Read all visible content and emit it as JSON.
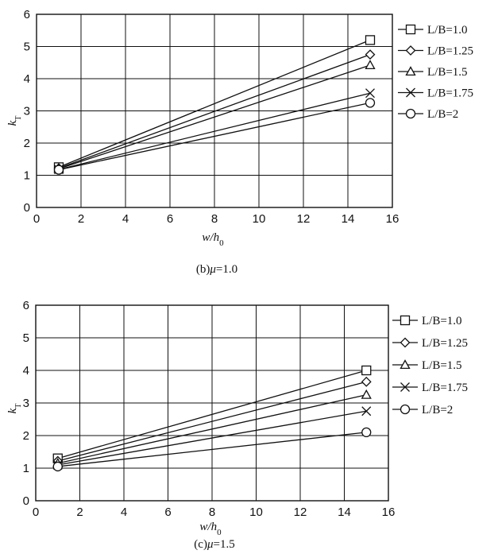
{
  "chart_data": [
    {
      "type": "line",
      "caption_prefix": "(b)",
      "caption_var": "μ",
      "caption_value": "=1.0",
      "xlabel_main": "w/h",
      "xlabel_sub": "0",
      "ylabel_main": "k",
      "ylabel_sub": "T",
      "xlim": [
        0,
        16
      ],
      "ylim": [
        0,
        6
      ],
      "xticks": [
        0,
        2,
        4,
        6,
        8,
        10,
        12,
        14,
        16
      ],
      "yticks": [
        0,
        1,
        2,
        3,
        4,
        5,
        6
      ],
      "grid": true,
      "legend_position": "right",
      "x": [
        1,
        15
      ],
      "series": [
        {
          "name": "L/B=1.0",
          "marker": "square",
          "values": [
            1.25,
            5.2
          ]
        },
        {
          "name": "L/B=1.25",
          "marker": "diamond",
          "values": [
            1.22,
            4.75
          ]
        },
        {
          "name": "L/B=1.5",
          "marker": "triangle",
          "values": [
            1.2,
            4.42
          ]
        },
        {
          "name": "L/B=1.75",
          "marker": "cross",
          "values": [
            1.18,
            3.55
          ]
        },
        {
          "name": "L/B=2",
          "marker": "circle",
          "values": [
            1.17,
            3.25
          ]
        }
      ]
    },
    {
      "type": "line",
      "caption_prefix": "(c)",
      "caption_var": "μ",
      "caption_value": "=1.5",
      "xlabel_main": "w/h",
      "xlabel_sub": "0",
      "ylabel_main": "k",
      "ylabel_sub": "T",
      "xlim": [
        0,
        16
      ],
      "ylim": [
        0,
        6
      ],
      "xticks": [
        0,
        2,
        4,
        6,
        8,
        10,
        12,
        14,
        16
      ],
      "yticks": [
        0,
        1,
        2,
        3,
        4,
        5,
        6
      ],
      "grid": true,
      "legend_position": "right",
      "x": [
        1,
        15
      ],
      "series": [
        {
          "name": "L/B=1.0",
          "marker": "square",
          "values": [
            1.3,
            4.0
          ]
        },
        {
          "name": "L/B=1.25",
          "marker": "diamond",
          "values": [
            1.22,
            3.65
          ]
        },
        {
          "name": "L/B=1.5",
          "marker": "triangle",
          "values": [
            1.15,
            3.25
          ]
        },
        {
          "name": "L/B=1.75",
          "marker": "cross",
          "values": [
            1.1,
            2.75
          ]
        },
        {
          "name": "L/B=2",
          "marker": "circle",
          "values": [
            1.05,
            2.1
          ]
        }
      ]
    }
  ]
}
